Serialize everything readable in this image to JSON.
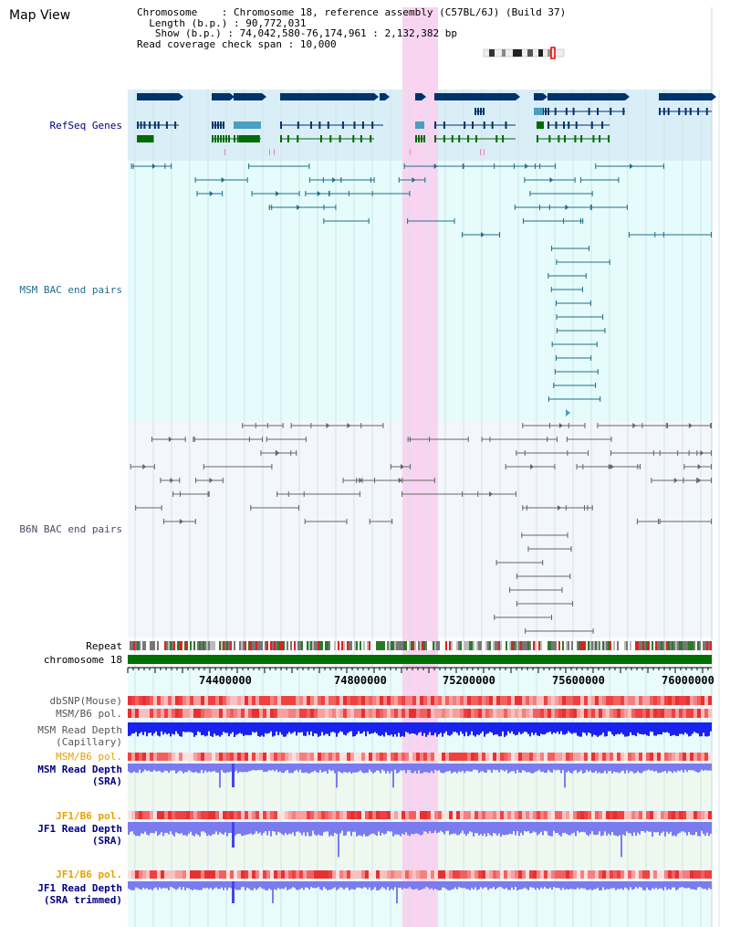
{
  "title": "Map View",
  "info": {
    "chromosome_key": "Chromosome",
    "chromosome_val": "Chromosome 18, reference assembly (C57BL/6J) (Build 37)",
    "length_key": "Length (b.p.)",
    "length_val": "90,772,031",
    "show_key": "Show (b.p.)",
    "show_val": "74,042,580-76,174,961 : 2,132,382 bp",
    "read_key": "Read coverage check span",
    "read_val": "10,000"
  },
  "tracks": {
    "refseq": "RefSeq Genes",
    "msm_bac": "MSM BAC end pairs",
    "b6n_bac": "B6N BAC end pairs",
    "repeat": "Repeat",
    "chromosome": "chromosome 18",
    "dbsnp": "dbSNP(Mouse)",
    "msm_pol": "MSM/B6 pol.",
    "msm_depth_1": "MSM Read Depth",
    "msm_depth_2": "(Capillary)",
    "msm_pol_sra": "MSM/B6 pol.",
    "msm_sra_1": "MSM Read Depth",
    "msm_sra_2": "(SRA)",
    "jf1_pol": "JF1/B6 pol.",
    "jf1_sra_1": "JF1 Read Depth",
    "jf1_sra_2": "(SRA)",
    "jf1_pol_2": "JF1/B6 pol.",
    "jf1_trim_1": "JF1 Read Depth",
    "jf1_trim_2": "(SRA trimmed)"
  },
  "axis": {
    "ticks": [
      "74400000",
      "74800000",
      "75200000",
      "75600000",
      "76000000"
    ]
  },
  "colors": {
    "refseq_bg": "#daeef8",
    "msm_bg": "#e6fbfb",
    "b6n_bg": "#f3f6fa",
    "highlight": "#f8d4f0",
    "gene_dark": "#00336a",
    "gene_light": "#4a9fc0",
    "gene_green": "#006b00",
    "msm_pair": "#1f6f8b",
    "b6n_pair": "#666666",
    "chromosome_bar": "#007000",
    "blue_label": "#00007f",
    "teal_label": "#1f6f8b",
    "orange_label": "#e8a000",
    "depth_blue": "#1a22f0",
    "depth_light": "#7b7bf0"
  }
}
